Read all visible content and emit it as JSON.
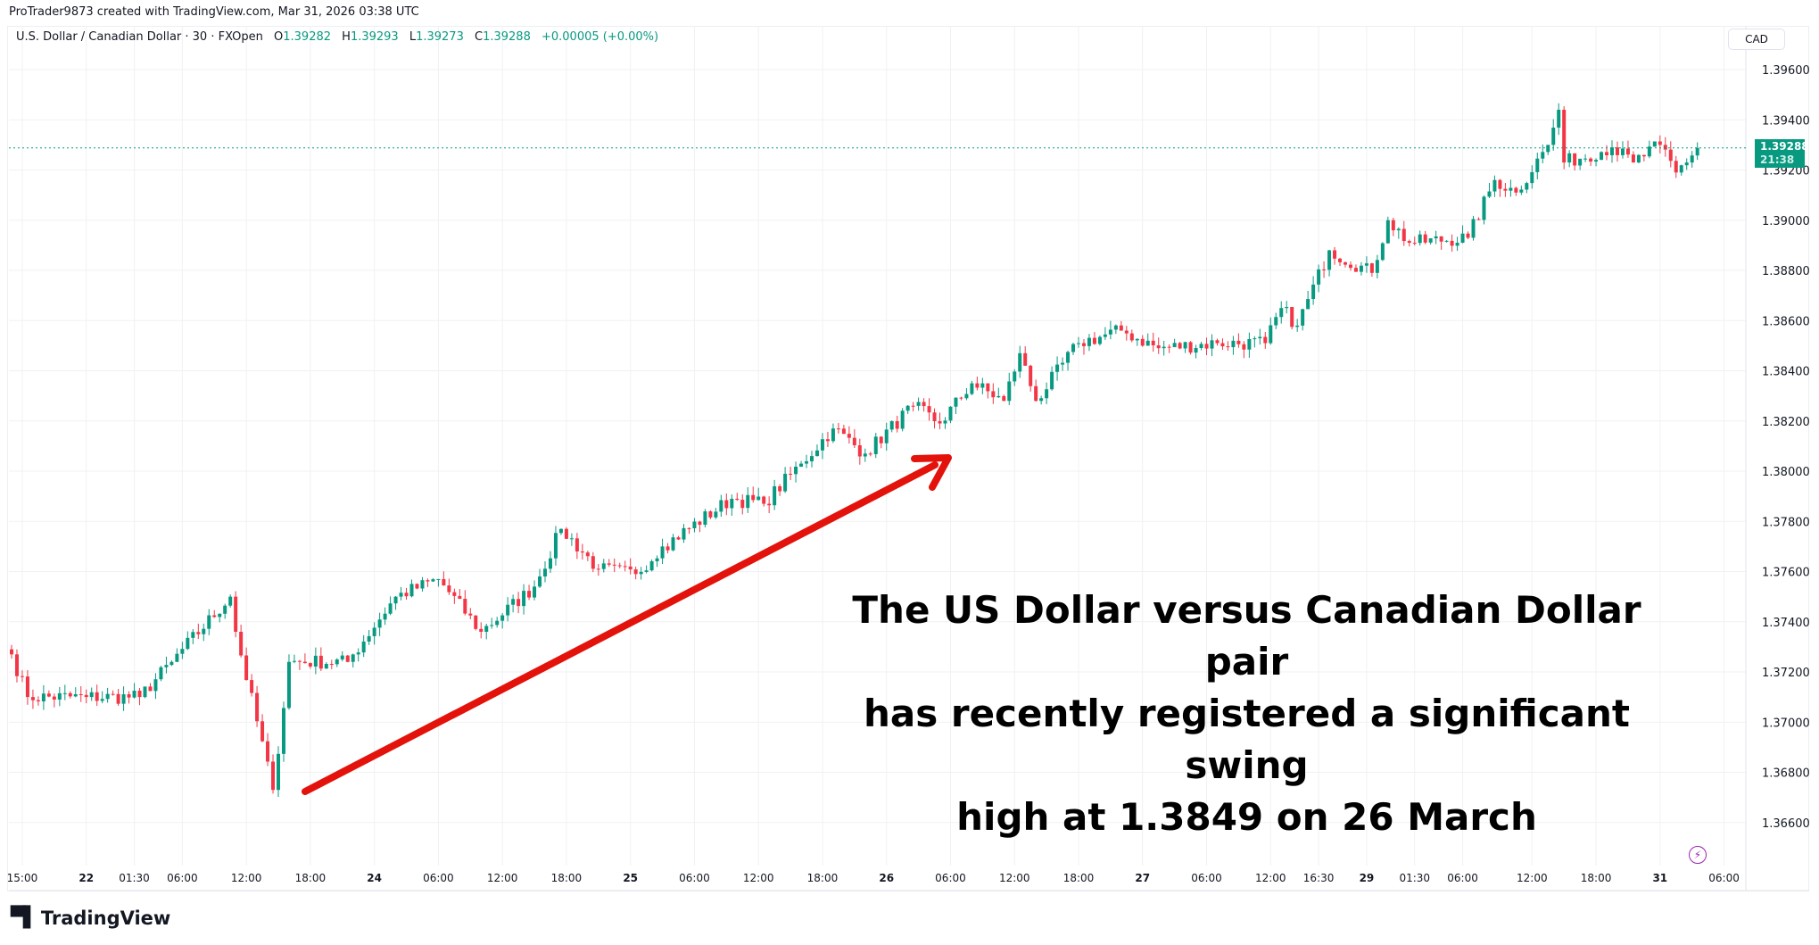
{
  "credit": "ProTrader9873 created with TradingView.com, Mar 31, 2026 03:38 UTC",
  "legend": {
    "symbol": "U.S. Dollar / Canadian Dollar · 30 · FXOpen",
    "o_label": "O",
    "o": "1.39282",
    "h_label": "H",
    "h": "1.39293",
    "l_label": "L",
    "l": "1.39273",
    "c_label": "C",
    "c": "1.39288",
    "change": "+0.00005 (+0.00%)"
  },
  "currency_button": "CAD",
  "last_price": {
    "price": "1.39288",
    "countdown": "21:38"
  },
  "annotation": {
    "line1": "The US Dollar versus Canadian Dollar pair",
    "line2": "has recently registered a significant swing",
    "line3": "high at 1.3849 on 26 March"
  },
  "logo": "TradingView",
  "colors": {
    "up": "#089981",
    "down": "#f23645",
    "arrow": "#e3120b",
    "grid": "#f0f1f4"
  },
  "chart_data": {
    "type": "candlestick",
    "title": "U.S. Dollar / Canadian Dollar · 30 · FXOpen",
    "timeframe_minutes": 30,
    "ylim": [
      1.3648,
      1.3975
    ],
    "y_ticks": [
      "1.39600",
      "1.39400",
      "1.39200",
      "1.39000",
      "1.38800",
      "1.38600",
      "1.38400",
      "1.38200",
      "1.38000",
      "1.37800",
      "1.37600",
      "1.37400",
      "1.37200",
      "1.37000",
      "1.36800",
      "1.36600"
    ],
    "x_ticks": [
      {
        "bar": 2,
        "label": "15:00"
      },
      {
        "bar": 14,
        "label": "22"
      },
      {
        "bar": 23,
        "label": "01:30"
      },
      {
        "bar": 32,
        "label": "06:00"
      },
      {
        "bar": 44,
        "label": "12:00"
      },
      {
        "bar": 56,
        "label": "18:00"
      },
      {
        "bar": 68,
        "label": "24"
      },
      {
        "bar": 80,
        "label": "06:00"
      },
      {
        "bar": 92,
        "label": "12:00"
      },
      {
        "bar": 104,
        "label": "18:00"
      },
      {
        "bar": 116,
        "label": "25"
      },
      {
        "bar": 128,
        "label": "06:00"
      },
      {
        "bar": 140,
        "label": "12:00"
      },
      {
        "bar": 152,
        "label": "18:00"
      },
      {
        "bar": 164,
        "label": "26"
      },
      {
        "bar": 176,
        "label": "06:00"
      },
      {
        "bar": 188,
        "label": "12:00"
      },
      {
        "bar": 200,
        "label": "18:00"
      },
      {
        "bar": 212,
        "label": "27"
      },
      {
        "bar": 224,
        "label": "06:00"
      },
      {
        "bar": 236,
        "label": "12:00"
      },
      {
        "bar": 245,
        "label": "16:30"
      },
      {
        "bar": 254,
        "label": "29"
      },
      {
        "bar": 263,
        "label": "01:30"
      },
      {
        "bar": 272,
        "label": "06:00"
      },
      {
        "bar": 285,
        "label": "12:00"
      },
      {
        "bar": 297,
        "label": "18:00"
      },
      {
        "bar": 309,
        "label": "31"
      },
      {
        "bar": 321,
        "label": "06:00"
      }
    ],
    "close_path": [
      [
        0,
        1.3727
      ],
      [
        3,
        1.371
      ],
      [
        14,
        1.371
      ],
      [
        24,
        1.371
      ],
      [
        30,
        1.3724
      ],
      [
        41,
        1.375
      ],
      [
        42,
        1.3736
      ],
      [
        49,
        1.3673
      ],
      [
        52,
        1.3724
      ],
      [
        63,
        1.3724
      ],
      [
        72,
        1.375
      ],
      [
        80,
        1.3757
      ],
      [
        88,
        1.3736
      ],
      [
        98,
        1.3754
      ],
      [
        103,
        1.3777
      ],
      [
        110,
        1.3761
      ],
      [
        117,
        1.3759
      ],
      [
        122,
        1.377
      ],
      [
        135,
        1.3789
      ],
      [
        141,
        1.3787
      ],
      [
        148,
        1.3803
      ],
      [
        154,
        1.3817
      ],
      [
        160,
        1.3807
      ],
      [
        169,
        1.3826
      ],
      [
        174,
        1.3819
      ],
      [
        180,
        1.3835
      ],
      [
        186,
        1.3828
      ],
      [
        189,
        1.3847
      ],
      [
        192,
        1.3828
      ],
      [
        200,
        1.3851
      ],
      [
        208,
        1.3856
      ],
      [
        215,
        1.3849
      ],
      [
        226,
        1.3851
      ],
      [
        235,
        1.3851
      ],
      [
        238,
        1.3865
      ],
      [
        241,
        1.3858
      ],
      [
        247,
        1.3888
      ],
      [
        255,
        1.3879
      ],
      [
        258,
        1.39
      ],
      [
        262,
        1.3891
      ],
      [
        273,
        1.3893
      ],
      [
        278,
        1.3916
      ],
      [
        282,
        1.3911
      ],
      [
        288,
        1.393
      ],
      [
        290,
        1.3944
      ],
      [
        291,
        1.3923
      ],
      [
        300,
        1.3929
      ],
      [
        304,
        1.3923
      ],
      [
        309,
        1.393
      ],
      [
        312,
        1.3919
      ],
      [
        316,
        1.39288
      ]
    ],
    "last_close": 1.39288
  }
}
